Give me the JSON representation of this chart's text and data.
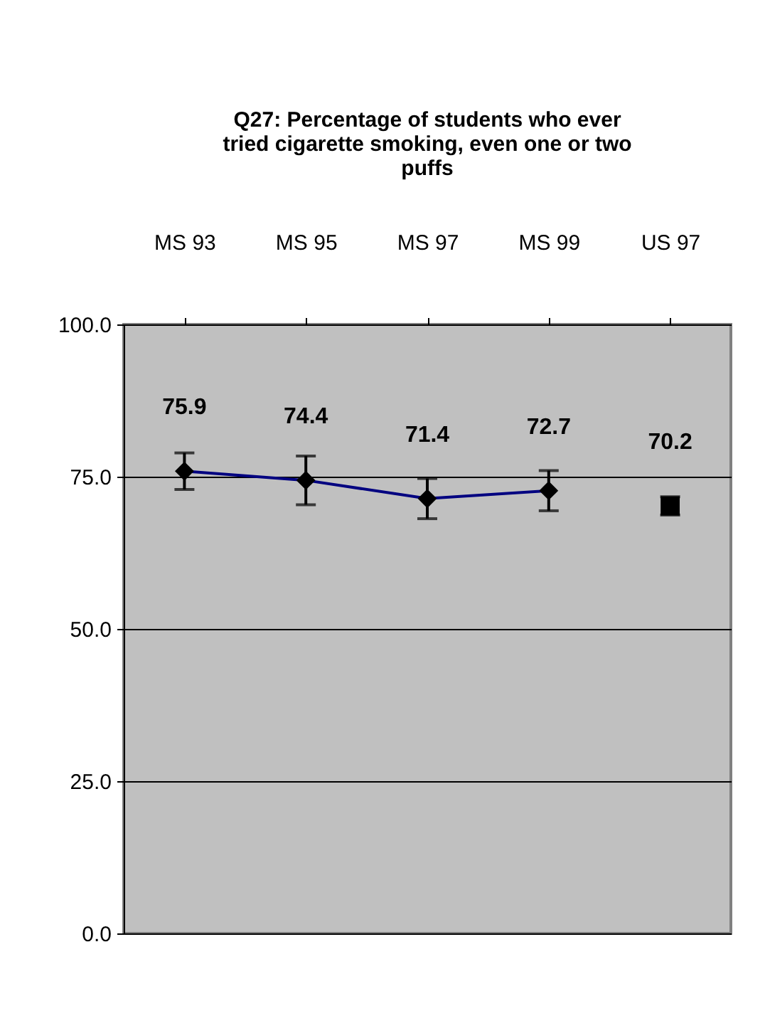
{
  "chart_data": {
    "type": "line",
    "title": [
      "Q27: Percentage of students who ever",
      "tried cigarette smoking, even one or two",
      "puffs"
    ],
    "categories": [
      "MS 93",
      "MS 95",
      "MS 97",
      "MS 99",
      "US 97"
    ],
    "series": [
      {
        "color": "#000080",
        "marker": "diamond",
        "values": [
          75.9,
          74.4,
          71.4,
          72.7,
          null
        ],
        "errors": [
          3.0,
          4.0,
          3.3,
          3.3,
          null
        ]
      },
      {
        "type": "scatter",
        "color": "#000000",
        "marker": "square",
        "values": [
          null,
          null,
          null,
          null,
          70.2
        ],
        "errors": [
          null,
          null,
          null,
          null,
          1.5
        ]
      }
    ],
    "ylim": [
      0,
      100
    ],
    "yticks": [
      {
        "value": 0,
        "label": "0.0"
      },
      {
        "value": 25,
        "label": "25.0"
      },
      {
        "value": 50,
        "label": "50.0"
      },
      {
        "value": 75,
        "label": "75.0"
      },
      {
        "value": 100,
        "label": "100.0"
      }
    ],
    "grid": "y",
    "data_labels": true
  }
}
